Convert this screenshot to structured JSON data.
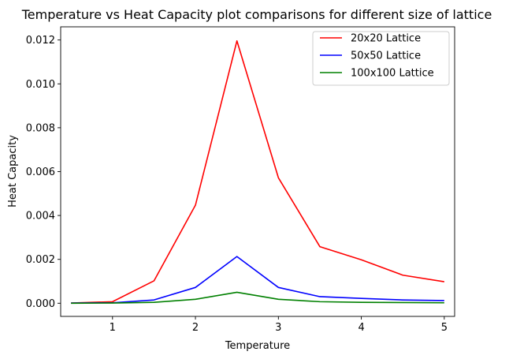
{
  "chart_data": {
    "type": "line",
    "title": "Temperature vs Heat Capacity plot comparisons for different size of lattice",
    "xlabel": "Temperature",
    "ylabel": "Heat Capacity",
    "xlim": [
      0.375,
      5.125
    ],
    "ylim": [
      -0.0006,
      0.0126
    ],
    "xticks": [
      1,
      2,
      3,
      4,
      5
    ],
    "xtick_labels": [
      "1",
      "2",
      "3",
      "4",
      "5"
    ],
    "yticks": [
      0.0,
      0.002,
      0.004,
      0.006,
      0.008,
      0.01,
      0.012
    ],
    "ytick_labels": [
      "0.000",
      "0.002",
      "0.004",
      "0.006",
      "0.008",
      "0.010",
      "0.012"
    ],
    "grid": false,
    "legend_position": "upper right",
    "x": [
      0.5,
      1.0,
      1.5,
      2.0,
      2.5,
      3.0,
      3.5,
      4.0,
      4.5,
      5.0
    ],
    "series": [
      {
        "name": "20x20 Lattice",
        "color": "#ff0000",
        "values": [
          1e-05,
          7e-05,
          0.00102,
          0.00447,
          0.01196,
          0.00572,
          0.00258,
          0.00198,
          0.00128,
          0.00098
        ]
      },
      {
        "name": "50x50 Lattice",
        "color": "#0000ff",
        "values": [
          1e-05,
          2e-05,
          0.00015,
          0.00072,
          0.00213,
          0.00072,
          0.0003,
          0.00022,
          0.00015,
          0.00012
        ]
      },
      {
        "name": "100x100 Lattice",
        "color": "#008000",
        "values": [
          0.0,
          1e-05,
          4e-05,
          0.00018,
          0.0005,
          0.00018,
          7e-05,
          4e-05,
          3e-05,
          2e-05
        ]
      }
    ]
  }
}
